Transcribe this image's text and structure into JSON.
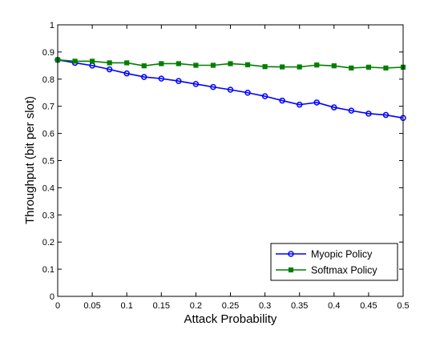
{
  "chart_data": {
    "type": "line",
    "title": "",
    "xlabel": "Attack Probability",
    "ylabel": "Throughput (bit per slot)",
    "xlim": [
      0,
      0.5
    ],
    "ylim": [
      0,
      1
    ],
    "x": [
      0,
      0.025,
      0.05,
      0.075,
      0.1,
      0.125,
      0.15,
      0.175,
      0.2,
      0.225,
      0.25,
      0.275,
      0.3,
      0.325,
      0.35,
      0.375,
      0.4,
      0.425,
      0.45,
      0.475,
      0.5
    ],
    "x_ticks": [
      0,
      0.05,
      0.1,
      0.15,
      0.2,
      0.25,
      0.3,
      0.35,
      0.4,
      0.45,
      0.5
    ],
    "x_tick_labels": [
      "0",
      "0.05",
      "0.1",
      "0.15",
      "0.2",
      "0.25",
      "0.3",
      "0.35",
      "0.4",
      "0.45",
      "0.5"
    ],
    "y_ticks": [
      0,
      0.1,
      0.2,
      0.3,
      0.4,
      0.5,
      0.6,
      0.7,
      0.8,
      0.9,
      1
    ],
    "y_tick_labels": [
      "0",
      "0.1",
      "0.2",
      "0.3",
      "0.4",
      "0.5",
      "0.6",
      "0.7",
      "0.8",
      "0.9",
      "1"
    ],
    "grid": false,
    "legend_position": "bottom-right",
    "series": [
      {
        "name": "Myopic Policy",
        "color": "#0000ff",
        "marker": "circle",
        "values": [
          0.871,
          0.86,
          0.85,
          0.836,
          0.821,
          0.808,
          0.802,
          0.793,
          0.782,
          0.771,
          0.761,
          0.75,
          0.737,
          0.721,
          0.706,
          0.714,
          0.696,
          0.684,
          0.673,
          0.668,
          0.657
        ]
      },
      {
        "name": "Softmax Policy",
        "color": "#007f00",
        "marker": "square",
        "values": [
          0.871,
          0.866,
          0.866,
          0.86,
          0.86,
          0.849,
          0.857,
          0.857,
          0.851,
          0.851,
          0.857,
          0.853,
          0.846,
          0.845,
          0.845,
          0.852,
          0.849,
          0.841,
          0.844,
          0.841,
          0.844
        ]
      }
    ]
  }
}
